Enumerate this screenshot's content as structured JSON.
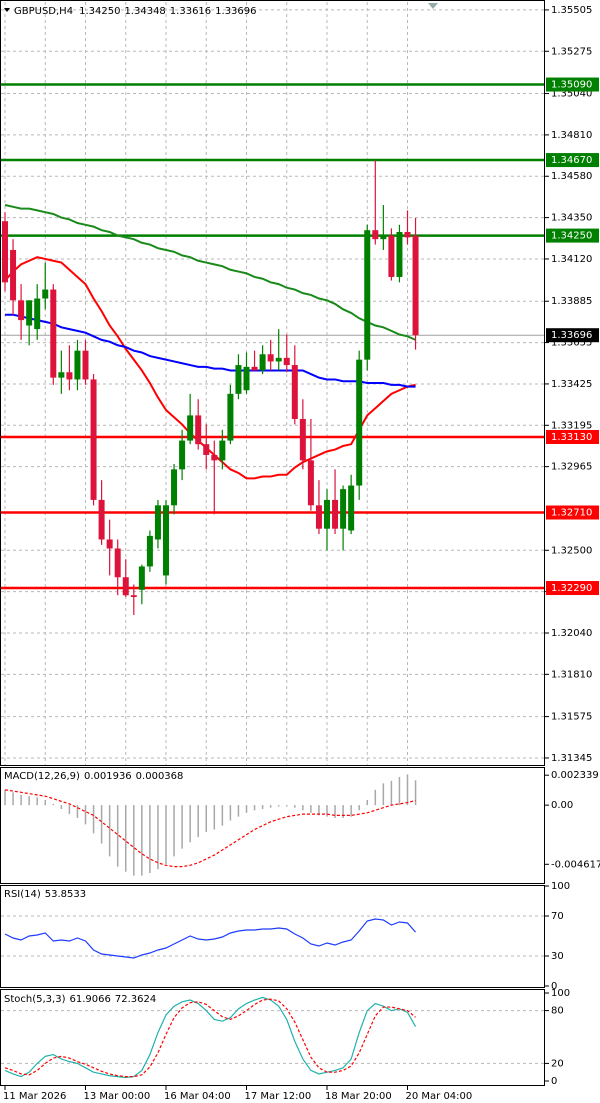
{
  "chart_data": [
    {
      "type": "candlestick",
      "title": "GBPUSD,H4",
      "title_values": [
        "1.34250",
        "1.34348",
        "1.33616",
        "1.33696"
      ],
      "categories": [
        "11 Mar 2026",
        null,
        null,
        null,
        null,
        null,
        null,
        null,
        null,
        null,
        "13 Mar 00:00",
        null,
        null,
        null,
        null,
        null,
        null,
        null,
        null,
        null,
        "16 Mar 04:00",
        null,
        null,
        null,
        null,
        null,
        null,
        null,
        null,
        null,
        "17 Mar 12:00",
        null,
        null,
        null,
        null,
        null,
        null,
        null,
        null,
        null,
        "18 Mar 20:00",
        null,
        null,
        null,
        null,
        null,
        null,
        null,
        null,
        null,
        "20 Mar 04:00",
        null
      ],
      "ohlc": [
        [
          1.3433,
          1.3438,
          1.3394,
          1.3399
        ],
        [
          1.3417,
          1.3423,
          1.3381,
          1.3389
        ],
        [
          1.3389,
          1.3398,
          1.3367,
          1.3378
        ],
        [
          1.3375,
          1.3389,
          1.3364,
          1.3389
        ],
        [
          1.3373,
          1.3398,
          1.3367,
          1.339
        ],
        [
          1.339,
          1.341,
          1.3384,
          1.3395
        ],
        [
          1.3395,
          1.3398,
          1.3342,
          1.3346
        ],
        [
          1.3346,
          1.3361,
          1.3337,
          1.3349
        ],
        [
          1.3349,
          1.3364,
          1.3339,
          1.3345
        ],
        [
          1.3345,
          1.3367,
          1.3339,
          1.3361
        ],
        [
          1.3361,
          1.3367,
          1.3342,
          1.3345
        ],
        [
          1.3345,
          1.3348,
          1.3275,
          1.3278
        ],
        [
          1.3278,
          1.3289,
          1.3253,
          1.3256
        ],
        [
          1.3256,
          1.3267,
          1.3236,
          1.3251
        ],
        [
          1.3251,
          1.3256,
          1.3225,
          1.3235
        ],
        [
          1.3235,
          1.3245,
          1.3224,
          1.3225
        ],
        [
          1.3225,
          1.3231,
          1.3214,
          1.3224
        ],
        [
          1.3228,
          1.3242,
          1.322,
          1.3241
        ],
        [
          1.3241,
          1.3261,
          1.3238,
          1.3258
        ],
        [
          1.3256,
          1.3278,
          1.3251,
          1.3275
        ],
        [
          1.3236,
          1.3278,
          1.3231,
          1.3275
        ],
        [
          1.3275,
          1.3298,
          1.327,
          1.3295
        ],
        [
          1.3295,
          1.3317,
          1.3289,
          1.3311
        ],
        [
          1.3311,
          1.3337,
          1.3309,
          1.3325
        ],
        [
          1.3325,
          1.3334,
          1.3306,
          1.3309
        ],
        [
          1.3309,
          1.332,
          1.3295,
          1.3303
        ],
        [
          1.3303,
          1.3311,
          1.327,
          1.33
        ],
        [
          1.33,
          1.3317,
          1.3295,
          1.3311
        ],
        [
          1.3311,
          1.3342,
          1.3309,
          1.3337
        ],
        [
          1.3337,
          1.3359,
          1.3334,
          1.3353
        ],
        [
          1.3339,
          1.336,
          1.3337,
          1.3352
        ],
        [
          1.3352,
          1.3361,
          1.335,
          1.335
        ],
        [
          1.335,
          1.3364,
          1.3348,
          1.3359
        ],
        [
          1.3359,
          1.3367,
          1.335,
          1.3355
        ],
        [
          1.3355,
          1.3373,
          1.335,
          1.3357
        ],
        [
          1.3357,
          1.337,
          1.3349,
          1.3353
        ],
        [
          1.3353,
          1.3364,
          1.332,
          1.3323
        ],
        [
          1.3323,
          1.3334,
          1.3295,
          1.33
        ],
        [
          1.33,
          1.3323,
          1.3272,
          1.3275
        ],
        [
          1.3275,
          1.3289,
          1.3259,
          1.3262
        ],
        [
          1.3262,
          1.3284,
          1.325,
          1.3278
        ],
        [
          1.3278,
          1.3295,
          1.3259,
          1.3262
        ],
        [
          1.3262,
          1.3286,
          1.325,
          1.3284
        ],
        [
          1.3261,
          1.3292,
          1.3259,
          1.3286
        ],
        [
          1.3286,
          1.3361,
          1.3278,
          1.3356
        ],
        [
          1.3356,
          1.3431,
          1.335,
          1.3428
        ],
        [
          1.3428,
          1.3467,
          1.342,
          1.3423
        ],
        [
          1.3423,
          1.3442,
          1.3417,
          1.3425
        ],
        [
          1.3425,
          1.3429,
          1.34,
          1.3402
        ],
        [
          1.3402,
          1.3431,
          1.3399,
          1.3427
        ],
        [
          1.3427,
          1.3439,
          1.342,
          1.3424
        ],
        [
          1.3425,
          1.34348,
          1.33616,
          1.33696
        ]
      ],
      "up_color": "#008000",
      "down_color": "#dc143c",
      "series": [
        {
          "color": "#ff0000",
          "values": [
            1.34,
            1.3405,
            1.3409,
            1.3411,
            1.3413,
            1.3412,
            1.3411,
            1.341,
            1.3406,
            1.3402,
            1.3398,
            1.339,
            1.3383,
            1.3375,
            1.3369,
            1.3362,
            1.3356,
            1.335,
            1.3343,
            1.3335,
            1.3328,
            1.3324,
            1.332,
            1.3315,
            1.3311,
            1.3307,
            1.3303,
            1.3299,
            1.3295,
            1.3293,
            1.329,
            1.329,
            1.3291,
            1.3291,
            1.3292,
            1.3292,
            1.3296,
            1.3299,
            1.3301,
            1.3303,
            1.3305,
            1.3306,
            1.3308,
            1.3309,
            1.3317,
            1.3325,
            1.3329,
            1.3333,
            1.3337,
            1.3339,
            1.3341,
            1.3342
          ]
        },
        {
          "color": "#0000ff",
          "values": [
            1.3381,
            1.3381,
            1.338,
            1.3379,
            1.3378,
            1.3377,
            1.3376,
            1.3374,
            1.3373,
            1.3372,
            1.3371,
            1.3369,
            1.3367,
            1.3366,
            1.3364,
            1.3363,
            1.3361,
            1.336,
            1.3358,
            1.3357,
            1.3356,
            1.3355,
            1.3354,
            1.3353,
            1.3352,
            1.3352,
            1.3351,
            1.3351,
            1.335,
            1.335,
            1.335,
            1.335,
            1.335,
            1.335,
            1.335,
            1.335,
            1.335,
            1.335,
            1.3348,
            1.3346,
            1.3345,
            1.3345,
            1.3344,
            1.3344,
            1.3344,
            1.3343,
            1.3343,
            1.3343,
            1.3342,
            1.3342,
            1.3341,
            1.3341
          ]
        },
        {
          "color": "#1a8a1a",
          "values": [
            1.3442,
            1.3441,
            1.344,
            1.344,
            1.3439,
            1.3438,
            1.3437,
            1.3435,
            1.3434,
            1.3432,
            1.3431,
            1.343,
            1.3428,
            1.3427,
            1.3425,
            1.3424,
            1.3423,
            1.3421,
            1.342,
            1.3418,
            1.3417,
            1.3416,
            1.3414,
            1.3413,
            1.3411,
            1.341,
            1.3409,
            1.3408,
            1.3406,
            1.3405,
            1.3404,
            1.3402,
            1.3401,
            1.3399,
            1.3398,
            1.3396,
            1.3395,
            1.3393,
            1.3392,
            1.339,
            1.3389,
            1.3387,
            1.3384,
            1.3382,
            1.3379,
            1.3377,
            1.3375,
            1.3374,
            1.3372,
            1.337,
            1.3369,
            1.3367
          ]
        }
      ],
      "levels": [
        {
          "value": 1.3509,
          "label": "1.35090",
          "color": "#008000"
        },
        {
          "value": 1.3467,
          "label": "1.34670",
          "color": "#008000"
        },
        {
          "value": 1.3425,
          "label": "1.34250",
          "color": "#008000"
        },
        {
          "value": 1.3313,
          "label": "1.33130",
          "color": "#ff0000"
        },
        {
          "value": 1.3271,
          "label": "1.32710",
          "color": "#ff0000"
        },
        {
          "value": 1.3229,
          "label": "1.32290",
          "color": "#ff0000"
        }
      ],
      "ylim": [
        1.31317,
        1.35549
      ],
      "yticks": [
        1.35505,
        1.35275,
        {
          "value": 1.3504,
          "label": "1.35040"
        },
        {
          "value": 1.3481,
          "label": "1.34810"
        },
        {
          "value": 1.3458,
          "label": "1.34580"
        },
        {
          "value": 1.3435,
          "label": "1.34350"
        },
        {
          "value": 1.3412,
          "label": "1.34120"
        },
        1.33885,
        1.33655,
        1.33425,
        1.33195,
        1.32965,
        {
          "value": 1.325,
          "label": "1.32500"
        },
        1.3227,
        {
          "value": 1.3204,
          "label": "1.32040"
        },
        {
          "value": 1.3181,
          "label": "1.31810"
        },
        1.31575,
        1.31345
      ],
      "grid": true
    },
    {
      "type": "indicator",
      "title": "MACD(12,26,9)",
      "ylim": [
        -0.006,
        0.0029
      ],
      "yticks": [
        0.002339,
        {
          "value": 0,
          "label": "0.00"
        },
        -0.004617
      ],
      "grid": false,
      "series": [
        {
          "style": "bar",
          "color": "#a8a8a8",
          "values": [
            0.0012,
            0.001,
            0.0008,
            0.0007,
            0.0006,
            0.0004,
            0.0001,
            -0.0003,
            -0.0007,
            -0.001,
            -0.0015,
            -0.0022,
            -0.003,
            -0.004,
            -0.0048,
            -0.0052,
            -0.0055,
            -0.0055,
            -0.0053,
            -0.005,
            -0.0046,
            -0.004,
            -0.0034,
            -0.0029,
            -0.0025,
            -0.0021,
            -0.0019,
            -0.0016,
            -0.0012,
            -0.0009,
            -0.0006,
            -0.0004,
            -0.0003,
            -0.0002,
            -0.0001,
            -0.0001,
            -0.0002,
            -0.0004,
            -0.0006,
            -0.0008,
            -0.0009,
            -0.001,
            -0.001,
            -0.0009,
            -0.0004,
            0.0004,
            0.0012,
            0.0017,
            0.0019,
            0.0022,
            0.0024,
            0.001936
          ]
        },
        {
          "style": "dash",
          "color": "#ff0000",
          "values": [
            0.0012,
            0.0011,
            0.001,
            0.0009,
            0.0008,
            0.0007,
            0.0005,
            0.0003,
            0.0001,
            -0.0002,
            -0.0005,
            -0.0008,
            -0.0013,
            -0.0018,
            -0.0023,
            -0.0028,
            -0.0033,
            -0.0038,
            -0.0042,
            -0.0045,
            -0.0047,
            -0.0048,
            -0.0048,
            -0.0047,
            -0.0045,
            -0.0042,
            -0.0039,
            -0.0035,
            -0.0031,
            -0.0027,
            -0.0023,
            -0.0019,
            -0.0016,
            -0.0013,
            -0.0011,
            -0.0009,
            -0.0008,
            -0.0007,
            -0.0007,
            -0.0007,
            -0.0007,
            -0.0008,
            -0.0008,
            -0.0008,
            -0.0007,
            -0.0006,
            -0.0004,
            -0.0002,
            0,
            0.0001,
            0.0002,
            0.000368
          ]
        }
      ]
    },
    {
      "type": "indicator",
      "title": "RSI(14)",
      "ylim": [
        0,
        100
      ],
      "yticks": [
        100,
        70,
        30,
        0
      ],
      "grid": true,
      "series": [
        {
          "style": "line",
          "color": "#1e3cff",
          "values": [
            52,
            48,
            46,
            50,
            51,
            53,
            45,
            46,
            45,
            48,
            45,
            36,
            32,
            31,
            30,
            29,
            28,
            31,
            33,
            36,
            38,
            42,
            46,
            50,
            47,
            46,
            47,
            49,
            53,
            55,
            56,
            56,
            57,
            57,
            58,
            57,
            52,
            48,
            42,
            40,
            43,
            41,
            44,
            46,
            55,
            65,
            67,
            66,
            61,
            64,
            63,
            53.8533
          ]
        }
      ]
    },
    {
      "type": "indicator",
      "title": "Stoch(5,3,3)",
      "ylim": [
        0,
        100
      ],
      "yticks": [
        100,
        80,
        20,
        0
      ],
      "grid": true,
      "series": [
        {
          "style": "line",
          "color": "#20b2aa",
          "values": [
            12,
            8,
            5,
            10,
            20,
            28,
            30,
            25,
            22,
            20,
            15,
            10,
            8,
            6,
            5,
            4,
            5,
            12,
            30,
            55,
            75,
            85,
            90,
            92,
            88,
            80,
            70,
            68,
            72,
            82,
            88,
            92,
            95,
            92,
            85,
            70,
            45,
            25,
            12,
            8,
            10,
            12,
            15,
            25,
            55,
            80,
            88,
            85,
            80,
            82,
            78,
            61.9066
          ]
        },
        {
          "style": "dash",
          "color": "#ff0000",
          "values": [
            15,
            12,
            8,
            7,
            12,
            20,
            26,
            28,
            26,
            22,
            19,
            15,
            11,
            8,
            6,
            5,
            5,
            7,
            16,
            32,
            53,
            72,
            83,
            89,
            90,
            87,
            80,
            73,
            70,
            74,
            80,
            87,
            92,
            93,
            91,
            82,
            67,
            47,
            27,
            15,
            10,
            10,
            12,
            17,
            32,
            53,
            74,
            84,
            84,
            82,
            80,
            72.3624
          ]
        }
      ]
    }
  ]
}
